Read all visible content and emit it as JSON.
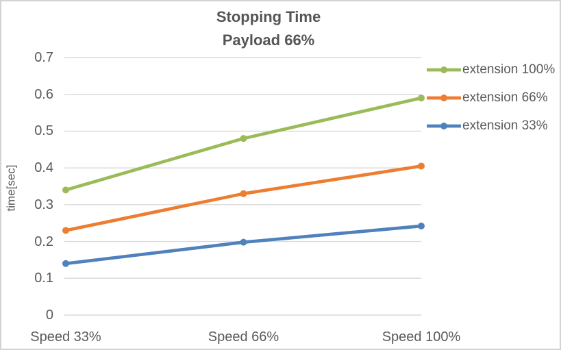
{
  "window": {
    "background_color": "#FFFFFF",
    "border_color": "#D3D3D3"
  },
  "chart_data": {
    "type": "line",
    "title": "Stopping Time",
    "subtitle": "Payload 66%",
    "xlabel": "",
    "ylabel": "time[sec]",
    "categories": [
      "Speed 33%",
      "Speed 66%",
      "Speed 100%"
    ],
    "series": [
      {
        "name": "extension 100%",
        "color": "#9BBB59",
        "values": [
          0.34,
          0.48,
          0.59
        ]
      },
      {
        "name": "extension 66%",
        "color": "#ED7D31",
        "values": [
          0.23,
          0.33,
          0.405
        ]
      },
      {
        "name": "extension 33%",
        "color": "#4F81BD",
        "values": [
          0.14,
          0.198,
          0.242
        ]
      }
    ],
    "ylim": [
      0,
      0.7
    ],
    "y_ticks": [
      "0",
      "0.1",
      "0.2",
      "0.3",
      "0.4",
      "0.5",
      "0.6",
      "0.7"
    ],
    "grid": true,
    "grid_color": "#D9D9D9",
    "text_color": "#595959",
    "legend_position": "right",
    "marker": "circle"
  }
}
